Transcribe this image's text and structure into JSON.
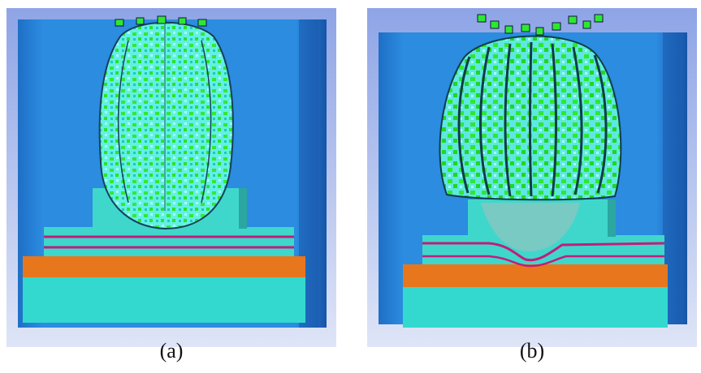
{
  "panels": [
    {
      "id": "a",
      "caption": "(a)"
    },
    {
      "id": "b",
      "caption": "(b)"
    }
  ],
  "colors": {
    "frame_light": "#c9d3f2",
    "chamber_blue": "#2a86da",
    "chamber_dark": "#1b5fb5",
    "block_cyan": "#33d9cf",
    "plate_orange": "#e8761d",
    "stripe_magenta": "#c21d7a",
    "particle_green": "#2ee830",
    "particle_cyan": "#7ff7f0"
  }
}
